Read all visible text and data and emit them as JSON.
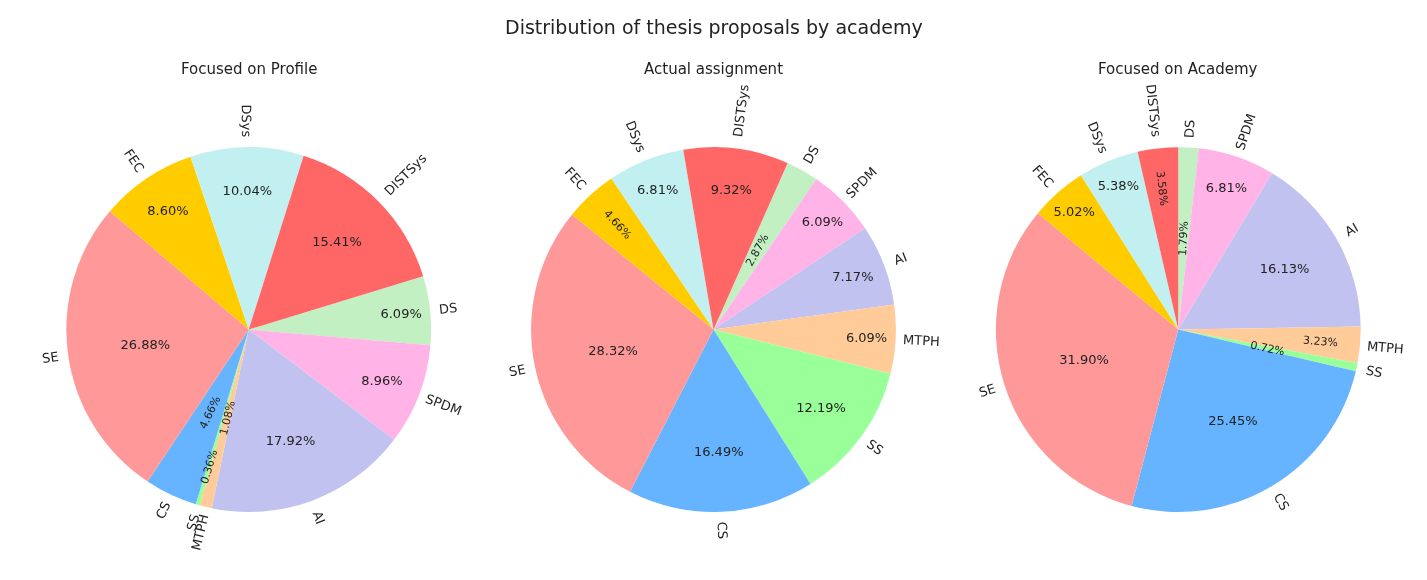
{
  "chart_data": [
    {
      "type": "pie",
      "title": "Focused on Profile",
      "annotations": [
        "Distribution of thesis proposals by academy"
      ],
      "categories": [
        "DS",
        "SPDM",
        "AI",
        "MTPH",
        "SS",
        "CS",
        "SE",
        "FEC",
        "DSys",
        "DISTSys"
      ],
      "values": [
        6.09,
        8.96,
        17.92,
        1.08,
        0.36,
        4.66,
        26.88,
        8.6,
        10.04,
        15.41
      ],
      "value_labels": [
        "6.09%",
        "8.96%",
        "17.92%",
        "1.08%",
        "0.36%",
        "4.66%",
        "26.88%",
        "8.60%",
        "10.04%",
        "15.41%"
      ],
      "colors": [
        "#c2f0c2",
        "#ffb3e6",
        "#c2c2f0",
        "#ffcc99",
        "#99ff99",
        "#66b3ff",
        "#ff9999",
        "#ffcc00",
        "#c2f0f0",
        "#ff6666"
      ]
    },
    {
      "type": "pie",
      "title": "Actual assignment",
      "categories": [
        "DS",
        "SPDM",
        "AI",
        "MTPH",
        "SS",
        "CS",
        "SE",
        "FEC",
        "DSys",
        "DISTSys"
      ],
      "values": [
        2.87,
        6.09,
        7.17,
        6.09,
        12.19,
        16.49,
        28.32,
        4.66,
        6.81,
        9.32
      ],
      "value_labels": [
        "2.87%",
        "6.09%",
        "7.17%",
        "6.09%",
        "12.19%",
        "16.49%",
        "28.32%",
        "4.66%",
        "6.81%",
        "9.32%"
      ],
      "colors": [
        "#c2f0c2",
        "#ffb3e6",
        "#c2c2f0",
        "#ffcc99",
        "#99ff99",
        "#66b3ff",
        "#ff9999",
        "#ffcc00",
        "#c2f0f0",
        "#ff6666"
      ]
    },
    {
      "type": "pie",
      "title": "Focused on Academy",
      "categories": [
        "DS",
        "SPDM",
        "AI",
        "MTPH",
        "SS",
        "CS",
        "SE",
        "FEC",
        "DSys",
        "DISTSys"
      ],
      "values": [
        1.79,
        6.81,
        16.13,
        3.23,
        0.72,
        25.45,
        31.9,
        5.02,
        5.38,
        3.58
      ],
      "value_labels": [
        "1.79%",
        "6.81%",
        "16.13%",
        "3.23%",
        "0.72%",
        "25.45%",
        "31.90%",
        "5.02%",
        "5.38%",
        "3.58%"
      ],
      "colors": [
        "#c2f0c2",
        "#ffb3e6",
        "#c2c2f0",
        "#ffcc99",
        "#99ff99",
        "#66b3ff",
        "#ff9999",
        "#ffcc00",
        "#c2f0f0",
        "#ff6666"
      ]
    }
  ]
}
